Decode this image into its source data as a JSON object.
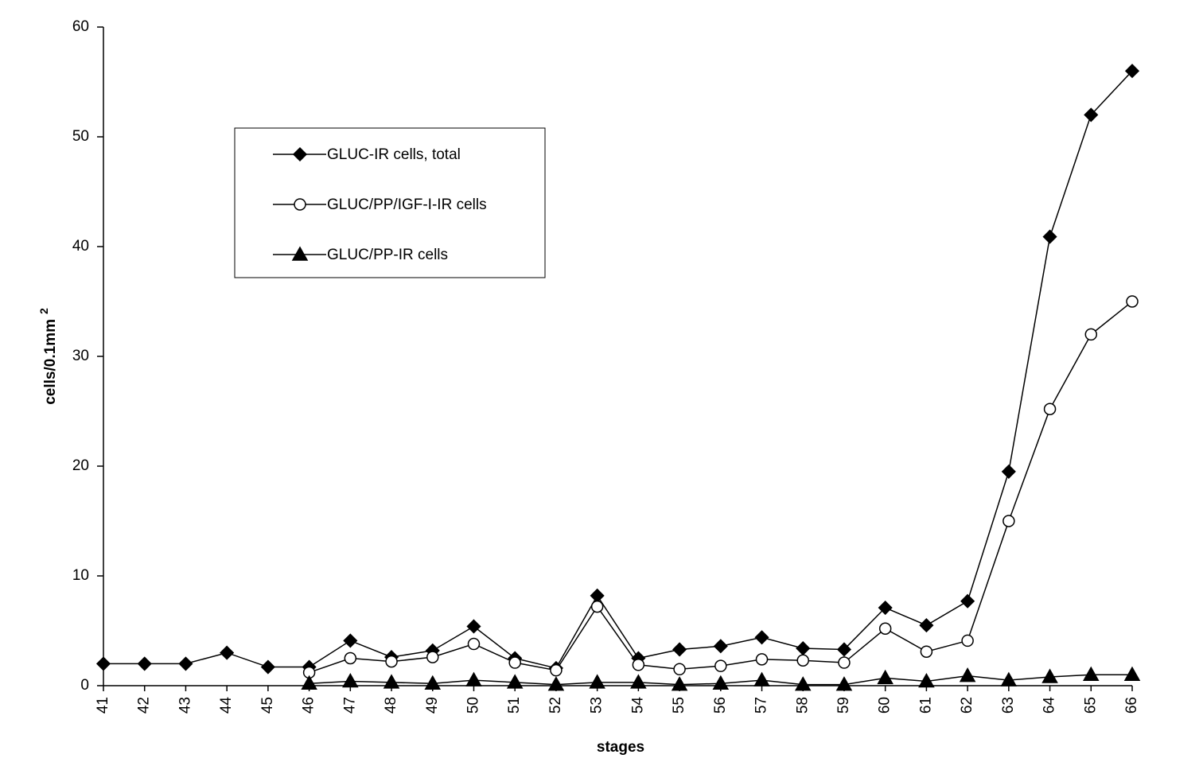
{
  "chart_data": {
    "type": "line",
    "x_label": "stages",
    "y_label": "cells/0.1mm",
    "y_label_sup": "2",
    "categories": [
      "41",
      "42",
      "43",
      "44",
      "45",
      "46",
      "47",
      "48",
      "49",
      "50",
      "51",
      "52",
      "53",
      "54",
      "55",
      "56",
      "57",
      "58",
      "59",
      "60",
      "61",
      "62",
      "63",
      "64",
      "65",
      "66"
    ],
    "series": [
      {
        "name": "GLUC-IR cells,  total",
        "color": "#000000",
        "marker": "diamond",
        "values": [
          2,
          2,
          2,
          3,
          1.7,
          1.7,
          4.1,
          2.6,
          3.2,
          5.4,
          2.5,
          1.6,
          8.2,
          2.5,
          3.3,
          3.6,
          4.4,
          3.4,
          3.3,
          7.1,
          5.5,
          7.7,
          19.5,
          40.9,
          52,
          56
        ]
      },
      {
        "name": "GLUC/PP/IGF-I-IR cells",
        "color": "#000000",
        "marker": "circle",
        "values": [
          null,
          null,
          null,
          null,
          null,
          1.2,
          2.5,
          2.2,
          2.6,
          3.8,
          2.1,
          1.4,
          7.2,
          1.9,
          1.5,
          1.8,
          2.4,
          2.3,
          2.1,
          5.2,
          3.1,
          4.1,
          15,
          25.2,
          32,
          35
        ]
      },
      {
        "name": "GLUC/PP-IR cells",
        "color": "#000000",
        "marker": "triangle",
        "values": [
          null,
          null,
          null,
          null,
          null,
          0.2,
          0.4,
          0.3,
          0.2,
          0.5,
          0.3,
          0.1,
          0.3,
          0.3,
          0.1,
          0.2,
          0.5,
          0.1,
          0.1,
          0.7,
          0.4,
          0.9,
          0.5,
          0.8,
          1,
          1
        ]
      }
    ],
    "ylim": [
      0,
      60
    ],
    "yticks": [
      0,
      10,
      20,
      30,
      40,
      50,
      60
    ],
    "grid": false
  }
}
